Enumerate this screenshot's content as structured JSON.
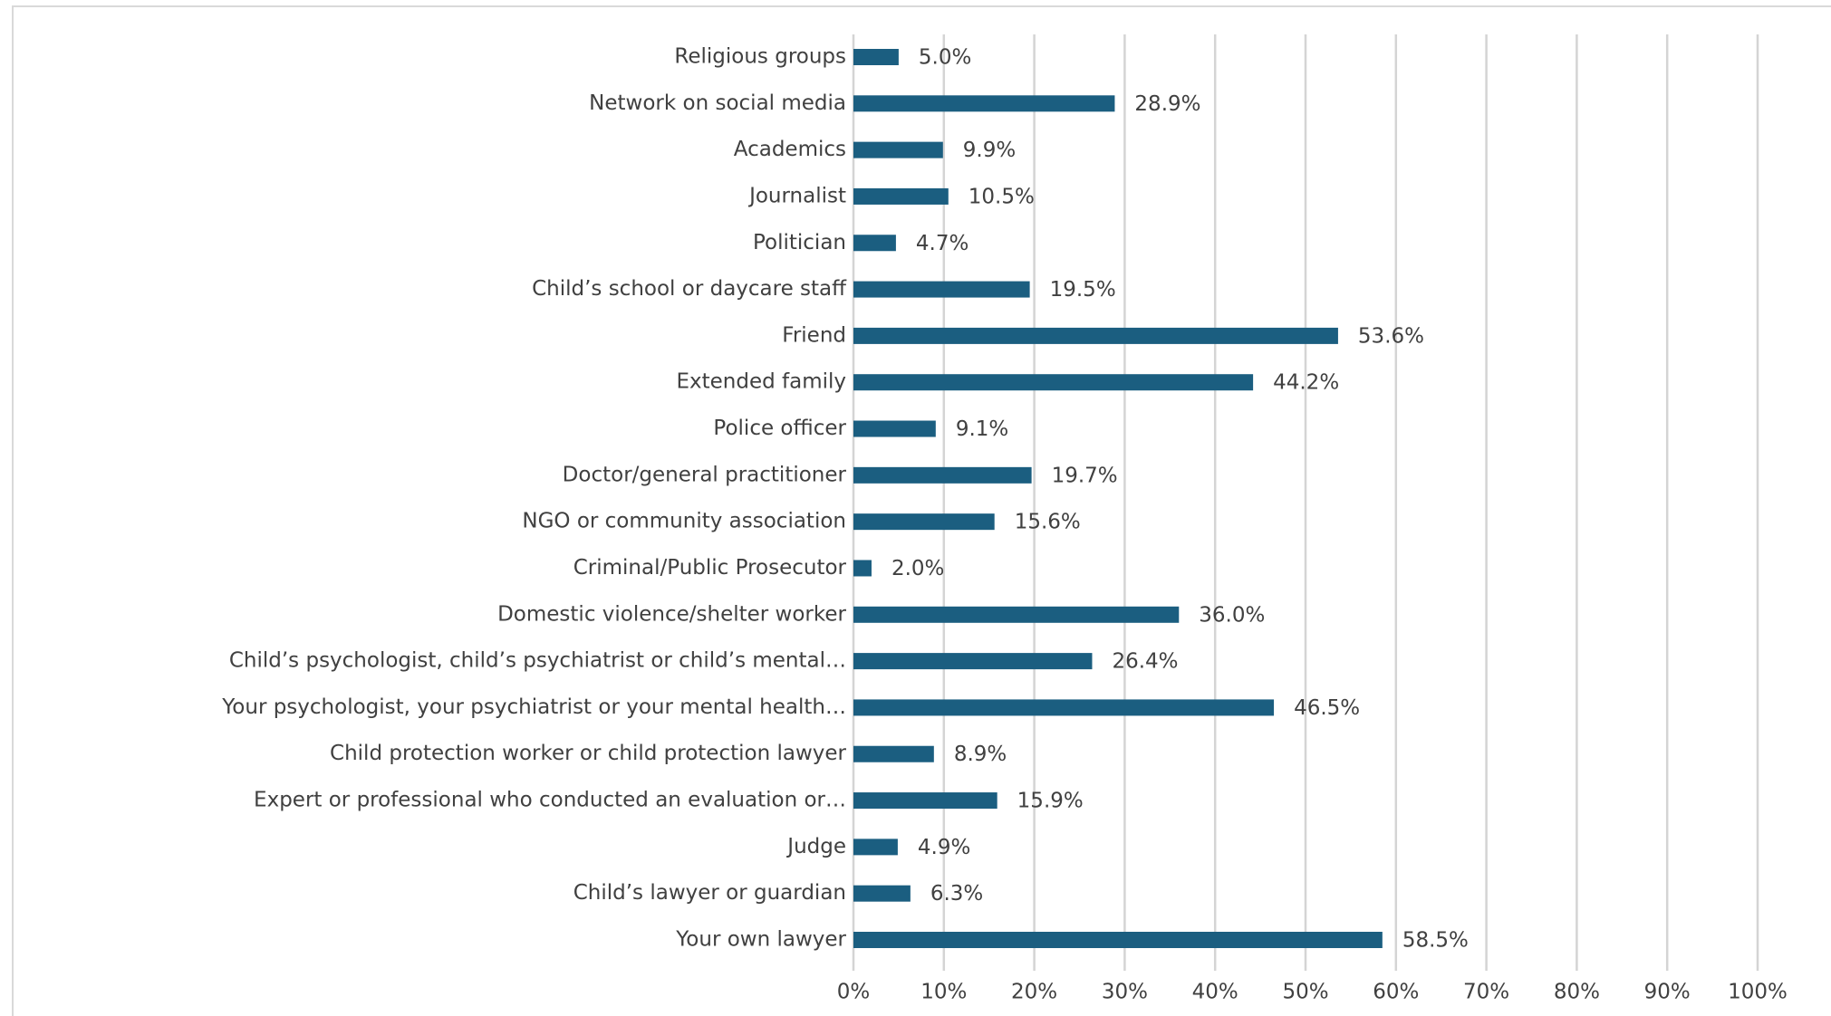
{
  "chart_data": {
    "type": "bar",
    "orientation": "horizontal",
    "categories": [
      "Religious groups",
      "Network on social media",
      "Academics",
      "Journalist",
      "Politician",
      "Child’s school or daycare staff",
      "Friend",
      "Extended family",
      "Police officer",
      "Doctor/general practitioner",
      "NGO or community association",
      "Criminal/Public Prosecutor",
      "Domestic violence/shelter worker",
      "Child’s psychologist, child’s psychiatrist or child’s mental…",
      "Your psychologist, your psychiatrist or your mental health…",
      "Child protection worker or child protection lawyer",
      "Expert or professional who conducted an evaluation or…",
      "Judge",
      "Child’s lawyer or guardian",
      "Your own lawyer"
    ],
    "values": [
      5.0,
      28.9,
      9.9,
      10.5,
      4.7,
      19.5,
      53.6,
      44.2,
      9.1,
      19.7,
      15.6,
      2.0,
      36.0,
      26.4,
      46.5,
      8.9,
      15.9,
      4.9,
      6.3,
      58.5
    ],
    "value_labels": [
      "5.0%",
      "28.9%",
      "9.9%",
      "10.5%",
      "4.7%",
      "19.5%",
      "53.6%",
      "44.2%",
      "9.1%",
      "19.7%",
      "15.6%",
      "2.0%",
      "36.0%",
      "26.4%",
      "46.5%",
      "8.9%",
      "15.9%",
      "4.9%",
      "6.3%",
      "58.5%"
    ],
    "color": "#1b5e80",
    "xlim": [
      0,
      100
    ],
    "xticks": [
      {
        "value": 0,
        "label": "0%"
      },
      {
        "value": 10,
        "label": "10%"
      },
      {
        "value": 20,
        "label": "20%"
      },
      {
        "value": 30,
        "label": "30%"
      },
      {
        "value": 40,
        "label": "40%"
      },
      {
        "value": 50,
        "label": "50%"
      },
      {
        "value": 60,
        "label": "60%"
      },
      {
        "value": 70,
        "label": "70%"
      },
      {
        "value": 80,
        "label": "80%"
      },
      {
        "value": 90,
        "label": "90%"
      },
      {
        "value": 100,
        "label": "100%"
      }
    ],
    "grid": true
  }
}
